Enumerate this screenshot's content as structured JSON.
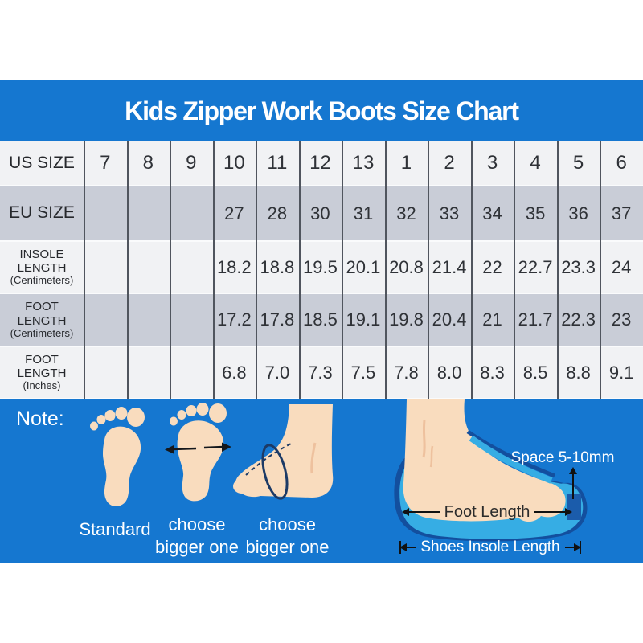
{
  "title": "Kids Zipper Work Boots Size Chart",
  "chart_data": {
    "type": "table",
    "title": "Kids Zipper Work Boots Size Chart",
    "row_headers": [
      {
        "label": "US SIZE",
        "sub": ""
      },
      {
        "label": "EU SIZE",
        "sub": ""
      },
      {
        "label": "INSOLE LENGTH",
        "sub": "(Centimeters)"
      },
      {
        "label": "FOOT LENGTH",
        "sub": "(Centimeters)"
      },
      {
        "label": "FOOT LENGTH",
        "sub": "(Inches)"
      }
    ],
    "rows": [
      [
        "7",
        "8",
        "9",
        "10",
        "11",
        "12",
        "13",
        "1",
        "2",
        "3",
        "4",
        "5",
        "6"
      ],
      [
        "",
        "",
        "",
        "27",
        "28",
        "30",
        "31",
        "32",
        "33",
        "34",
        "35",
        "36",
        "37"
      ],
      [
        "",
        "",
        "",
        "18.2",
        "18.8",
        "19.5",
        "20.1",
        "20.8",
        "21.4",
        "22",
        "22.7",
        "23.3",
        "24"
      ],
      [
        "",
        "",
        "",
        "17.2",
        "17.8",
        "18.5",
        "19.1",
        "19.8",
        "20.4",
        "21",
        "21.7",
        "22.3",
        "23"
      ],
      [
        "",
        "",
        "",
        "6.8",
        "7.0",
        "7.3",
        "7.5",
        "7.8",
        "8.0",
        "8.3",
        "8.5",
        "8.8",
        "9.1"
      ]
    ]
  },
  "note": {
    "label": "Note:",
    "captions": {
      "standard": "Standard",
      "wide": "choose bigger one",
      "side": "choose bigger one"
    },
    "diagram": {
      "space_label": "Space 5-10mm",
      "foot_length_label": "Foot Length",
      "insole_length_label": "Shoes Insole Length"
    }
  },
  "colors": {
    "banner_blue": "#1577d0",
    "row_light": "#f1f2f4",
    "row_dark": "#c9cdd7",
    "grid_line": "#50555e",
    "skin": "#f9dcbe",
    "insole_light": "#36ade4",
    "insole_dark": "#134f9e",
    "title_text": "#ffffff"
  }
}
